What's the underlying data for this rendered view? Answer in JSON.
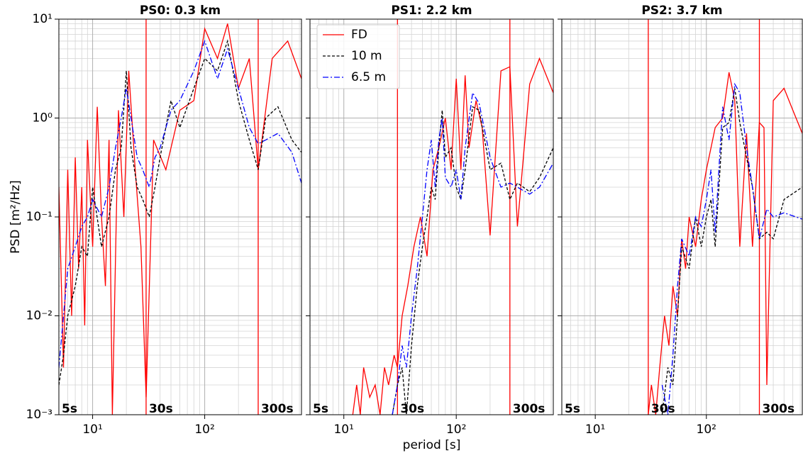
{
  "chart_data": [
    {
      "type": "line",
      "title": "PS0: 0.3 km",
      "ylabel": "PSD [m²/Hz]",
      "xscale": "log",
      "yscale": "log",
      "grid": true,
      "xlim": [
        5,
        730
      ],
      "ylim": [
        0.001,
        10
      ],
      "xticks": [
        {
          "value": 10,
          "label": "10¹"
        },
        {
          "value": 100,
          "label": "10²"
        }
      ],
      "yticks": [
        {
          "value": 0.001,
          "label": "10⁻³"
        },
        {
          "value": 0.01,
          "label": "10⁻²"
        },
        {
          "value": 0.1,
          "label": "10⁻¹"
        },
        {
          "value": 1,
          "label": "10⁰"
        },
        {
          "value": 10,
          "label": "10¹"
        }
      ],
      "xminorticks": [
        6,
        7,
        8,
        9,
        20,
        30,
        40,
        50,
        60,
        70,
        80,
        90,
        200,
        300,
        400,
        500,
        600,
        700
      ],
      "yminorticks": [
        0.002,
        0.003,
        0.004,
        0.005,
        0.006,
        0.007,
        0.008,
        0.009,
        0.02,
        0.03,
        0.04,
        0.05,
        0.06,
        0.07,
        0.08,
        0.09,
        0.2,
        0.3,
        0.4,
        0.5,
        0.6,
        0.7,
        0.8,
        0.9,
        2,
        3,
        4,
        5,
        6,
        7,
        8,
        9
      ],
      "vlines": {
        "values": [
          30,
          300
        ],
        "color": "#ff0000"
      },
      "annotations": [
        {
          "x": 5,
          "text": "5s"
        },
        {
          "x": 30,
          "text": "30s"
        },
        {
          "x": 300,
          "text": "300s"
        }
      ],
      "series": [
        {
          "name": "FD",
          "color": "#ff0000",
          "dash": "solid",
          "x": [
            5,
            5.5,
            6,
            6.5,
            7,
            7.5,
            8,
            8.5,
            9,
            10,
            11,
            12,
            13,
            14,
            15,
            17,
            19,
            21,
            24,
            27,
            30,
            35,
            45,
            60,
            80,
            100,
            130,
            160,
            200,
            250,
            300,
            400,
            550,
            730
          ],
          "values": [
            0.2,
            0.003,
            0.3,
            0.01,
            0.4,
            0.03,
            0.2,
            0.008,
            0.6,
            0.05,
            1.3,
            0.1,
            0.02,
            0.6,
            0.001,
            1.2,
            0.1,
            3,
            0.3,
            0.05,
            0.0015,
            0.6,
            0.3,
            1.2,
            1.5,
            8,
            4,
            9,
            2,
            4,
            0.3,
            4,
            6,
            2.5
          ]
        },
        {
          "name": "10 m",
          "color": "#000000",
          "dash": "dashed",
          "x": [
            5,
            5.5,
            6,
            7,
            8,
            9,
            10,
            12,
            14,
            16,
            18,
            20,
            22,
            25,
            28,
            32,
            36,
            40,
            50,
            60,
            80,
            100,
            130,
            160,
            200,
            250,
            300,
            350,
            450,
            600,
            730
          ],
          "values": [
            0.002,
            0.004,
            0.01,
            0.02,
            0.05,
            0.04,
            0.2,
            0.05,
            0.1,
            0.3,
            0.5,
            3,
            0.5,
            0.2,
            0.15,
            0.1,
            0.2,
            0.4,
            1.5,
            0.8,
            2,
            4,
            3,
            6,
            1.5,
            0.6,
            0.3,
            1,
            1.3,
            0.6,
            0.45
          ]
        },
        {
          "name": "6.5 m",
          "color": "#0000ff",
          "dash": "dashdot",
          "x": [
            5,
            5.5,
            6,
            7,
            8,
            9,
            10,
            12,
            14,
            16,
            18,
            20,
            22,
            25,
            28,
            32,
            36,
            40,
            50,
            60,
            80,
            100,
            130,
            160,
            200,
            250,
            300,
            350,
            450,
            600,
            730
          ],
          "values": [
            0.003,
            0.01,
            0.03,
            0.05,
            0.08,
            0.1,
            0.15,
            0.1,
            0.2,
            0.5,
            1,
            2,
            1,
            0.4,
            0.3,
            0.2,
            0.4,
            0.5,
            1.2,
            1.5,
            3,
            6,
            2.5,
            5,
            2,
            0.8,
            0.55,
            0.6,
            0.7,
            0.45,
            0.22
          ]
        }
      ]
    },
    {
      "type": "line",
      "title": "PS1: 2.2 km",
      "xlabel": "period [s]",
      "xscale": "log",
      "yscale": "log",
      "grid": true,
      "legend": "upper left",
      "yticklabels": false,
      "xlim": [
        5,
        730
      ],
      "ylim": [
        0.001,
        10
      ],
      "xticks": [
        {
          "value": 10,
          "label": "10¹"
        },
        {
          "value": 100,
          "label": "10²"
        }
      ],
      "yticks": [
        0.001,
        0.01,
        0.1,
        1,
        10
      ],
      "xminorticks": [
        6,
        7,
        8,
        9,
        20,
        30,
        40,
        50,
        60,
        70,
        80,
        90,
        200,
        300,
        400,
        500,
        600,
        700
      ],
      "yminorticks": [
        0.002,
        0.003,
        0.004,
        0.005,
        0.006,
        0.007,
        0.008,
        0.009,
        0.02,
        0.03,
        0.04,
        0.05,
        0.06,
        0.07,
        0.08,
        0.09,
        0.2,
        0.3,
        0.4,
        0.5,
        0.6,
        0.7,
        0.8,
        0.9,
        2,
        3,
        4,
        5,
        6,
        7,
        8,
        9
      ],
      "vlines": {
        "values": [
          30,
          300
        ],
        "color": "#ff0000"
      },
      "annotations": [
        {
          "x": 5,
          "text": "5s"
        },
        {
          "x": 30,
          "text": "30s"
        },
        {
          "x": 300,
          "text": "300s"
        }
      ],
      "series": [
        {
          "name": "FD",
          "color": "#ff0000",
          "dash": "solid",
          "x": [
            12,
            13,
            14,
            15,
            17,
            19,
            21,
            23,
            25,
            28,
            30,
            33,
            37,
            42,
            48,
            55,
            62,
            70,
            80,
            90,
            100,
            110,
            120,
            130,
            150,
            170,
            200,
            250,
            300,
            350,
            450,
            550,
            730
          ],
          "values": [
            0.001,
            0.002,
            0.001,
            0.003,
            0.0015,
            0.002,
            0.001,
            0.003,
            0.002,
            0.004,
            0.003,
            0.01,
            0.02,
            0.05,
            0.1,
            0.04,
            0.3,
            0.5,
            1,
            0.3,
            2.5,
            0.3,
            2.7,
            0.5,
            1.5,
            0.8,
            0.065,
            3,
            3.3,
            0.08,
            2.2,
            4,
            1.8
          ]
        },
        {
          "name": "10 m",
          "color": "#000000",
          "dash": "dashed",
          "x": [
            27,
            30,
            33,
            36,
            40,
            45,
            50,
            55,
            60,
            65,
            70,
            75,
            80,
            90,
            100,
            110,
            120,
            140,
            160,
            200,
            250,
            300,
            350,
            450,
            550,
            730
          ],
          "values": [
            0.001,
            0.002,
            0.003,
            0.001,
            0.005,
            0.02,
            0.05,
            0.1,
            0.2,
            0.15,
            0.5,
            1.2,
            0.4,
            0.5,
            0.2,
            0.15,
            0.3,
            1.3,
            1.2,
            0.3,
            0.35,
            0.15,
            0.22,
            0.18,
            0.25,
            0.5
          ]
        },
        {
          "name": "6.5 m",
          "color": "#0000ff",
          "dash": "dashdot",
          "x": [
            27,
            30,
            33,
            36,
            40,
            45,
            50,
            55,
            60,
            65,
            70,
            75,
            80,
            90,
            100,
            110,
            120,
            140,
            160,
            200,
            250,
            300,
            350,
            450,
            550,
            730
          ],
          "values": [
            0.001,
            0.002,
            0.005,
            0.003,
            0.01,
            0.03,
            0.1,
            0.3,
            0.6,
            0.2,
            0.6,
            1,
            0.25,
            0.2,
            0.3,
            0.15,
            0.5,
            1.8,
            1.4,
            0.4,
            0.2,
            0.22,
            0.2,
            0.17,
            0.2,
            0.35
          ]
        }
      ]
    },
    {
      "type": "line",
      "title": "PS2: 3.7 km",
      "xscale": "log",
      "yscale": "log",
      "grid": true,
      "yticklabels": false,
      "xlim": [
        5,
        730
      ],
      "ylim": [
        0.001,
        10
      ],
      "xticks": [
        {
          "value": 10,
          "label": "10¹"
        },
        {
          "value": 100,
          "label": "10²"
        }
      ],
      "yticks": [
        0.001,
        0.01,
        0.1,
        1,
        10
      ],
      "xminorticks": [
        6,
        7,
        8,
        9,
        20,
        30,
        40,
        50,
        60,
        70,
        80,
        90,
        200,
        300,
        400,
        500,
        600,
        700
      ],
      "yminorticks": [
        0.002,
        0.003,
        0.004,
        0.005,
        0.006,
        0.007,
        0.008,
        0.009,
        0.02,
        0.03,
        0.04,
        0.05,
        0.06,
        0.07,
        0.08,
        0.09,
        0.2,
        0.3,
        0.4,
        0.5,
        0.6,
        0.7,
        0.8,
        0.9,
        2,
        3,
        4,
        5,
        6,
        7,
        8,
        9
      ],
      "vlines": {
        "values": [
          30,
          300
        ],
        "color": "#ff0000"
      },
      "annotations": [
        {
          "x": 5,
          "text": "5s"
        },
        {
          "x": 30,
          "text": "30s"
        },
        {
          "x": 300,
          "text": "300s"
        }
      ],
      "series": [
        {
          "name": "FD",
          "color": "#ff0000",
          "dash": "solid",
          "x": [
            30,
            32,
            35,
            38,
            42,
            46,
            50,
            55,
            60,
            65,
            70,
            80,
            90,
            100,
            110,
            120,
            140,
            160,
            180,
            200,
            230,
            260,
            300,
            330,
            350,
            400,
            500,
            600,
            730
          ],
          "values": [
            0.001,
            0.002,
            0.001,
            0.003,
            0.01,
            0.005,
            0.02,
            0.01,
            0.06,
            0.03,
            0.1,
            0.05,
            0.15,
            0.3,
            0.5,
            0.8,
            1,
            2.9,
            1.5,
            0.05,
            0.7,
            0.05,
            0.9,
            0.8,
            0.002,
            1.5,
            2,
            1.2,
            0.7
          ]
        },
        {
          "name": "10 m",
          "color": "#000000",
          "dash": "dashed",
          "x": [
            40,
            45,
            50,
            55,
            60,
            70,
            80,
            90,
            100,
            110,
            120,
            140,
            160,
            180,
            200,
            230,
            260,
            300,
            350,
            400,
            500,
            730
          ],
          "values": [
            0.001,
            0.003,
            0.002,
            0.01,
            0.05,
            0.03,
            0.1,
            0.05,
            0.1,
            0.15,
            0.05,
            0.8,
            0.9,
            2,
            0.9,
            0.4,
            0.2,
            0.06,
            0.07,
            0.06,
            0.15,
            0.2
          ]
        },
        {
          "name": "6.5 m",
          "color": "#0000ff",
          "dash": "dashdot",
          "x": [
            40,
            45,
            50,
            55,
            60,
            70,
            80,
            90,
            100,
            110,
            120,
            140,
            160,
            180,
            200,
            230,
            260,
            300,
            350,
            400,
            500,
            730
          ],
          "values": [
            0.002,
            0.001,
            0.004,
            0.02,
            0.06,
            0.04,
            0.1,
            0.08,
            0.15,
            0.3,
            0.07,
            1.3,
            0.6,
            2.2,
            1.8,
            0.5,
            0.2,
            0.06,
            0.12,
            0.1,
            0.11,
            0.095
          ]
        }
      ]
    }
  ]
}
